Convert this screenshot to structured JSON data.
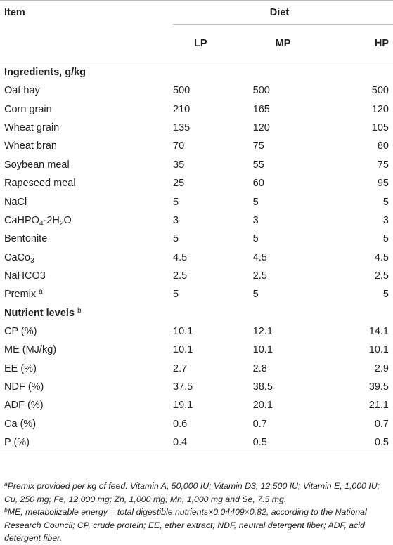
{
  "header": {
    "item": "Item",
    "diet": "Diet",
    "lp": "LP",
    "mp": "MP",
    "hp": "HP"
  },
  "sections": {
    "ingredients": "Ingredients, g/kg",
    "nutrients": "Nutrient levels",
    "nutrients_sup": "b"
  },
  "ingredients": [
    {
      "item": "Oat hay",
      "lp": "500",
      "mp": "500",
      "hp": "500"
    },
    {
      "item": "Corn grain",
      "lp": "210",
      "mp": "165",
      "hp": "120"
    },
    {
      "item": "Wheat grain",
      "lp": "135",
      "mp": "120",
      "hp": "105"
    },
    {
      "item": "Wheat bran",
      "lp": "70",
      "mp": "75",
      "hp": "80"
    },
    {
      "item": "Soybean meal",
      "lp": "35",
      "mp": "55",
      "hp": "75"
    },
    {
      "item": "Rapeseed meal",
      "lp": "25",
      "mp": "60",
      "hp": "95"
    },
    {
      "item": "NaCl",
      "lp": "5",
      "mp": "5",
      "hp": "5"
    },
    {
      "item_pre": "CaHPO",
      "item_sub1": "4",
      "item_mid": "·2H",
      "item_sub2": "2",
      "item_post": "O",
      "lp": "3",
      "mp": "3",
      "hp": "3"
    },
    {
      "item": "Bentonite",
      "lp": "5",
      "mp": "5",
      "hp": "5"
    },
    {
      "item_pre": "CaCo",
      "item_sub1": "3",
      "lp": "4.5",
      "mp": "4.5",
      "hp": "4.5"
    },
    {
      "item": "NaHCO3",
      "lp": "2.5",
      "mp": "2.5",
      "hp": "2.5"
    },
    {
      "item": "Premix",
      "item_sup": "a",
      "lp": "5",
      "mp": "5",
      "hp": "5"
    }
  ],
  "nutrients": [
    {
      "item": "CP (%)",
      "lp": "10.1",
      "mp": "12.1",
      "hp": "14.1"
    },
    {
      "item": "ME (MJ/kg)",
      "lp": "10.1",
      "mp": "10.1",
      "hp": "10.1"
    },
    {
      "item": "EE (%)",
      "lp": "2.7",
      "mp": "2.8",
      "hp": "2.9"
    },
    {
      "item": "NDF (%)",
      "lp": "37.5",
      "mp": "38.5",
      "hp": "39.5"
    },
    {
      "item": "ADF (%)",
      "lp": "19.1",
      "mp": "20.1",
      "hp": "21.1"
    },
    {
      "item": "Ca (%)",
      "lp": "0.6",
      "mp": "0.7",
      "hp": "0.7"
    },
    {
      "item": "P (%)",
      "lp": "0.4",
      "mp": "0.5",
      "hp": "0.5"
    }
  ],
  "footnotes": {
    "a_mark": "a",
    "a_text": "Premix provided per kg of feed: Vitamin A, 50,000 IU; Vitamin D3, 12,500 IU; Vitamin E, 1,000 IU; Cu, 250 mg; Fe, 12,000 mg; Zn, 1,000 mg; Mn, 1,000 mg and Se, 7.5 mg.",
    "b_mark": "b",
    "b_text": "ME, metabolizable energy = total digestible nutrients×0.04409×0.82, according to the National Research Council; CP, crude protein; EE, ether extract; NDF, neutral detergent fiber; ADF, acid detergent fiber."
  }
}
